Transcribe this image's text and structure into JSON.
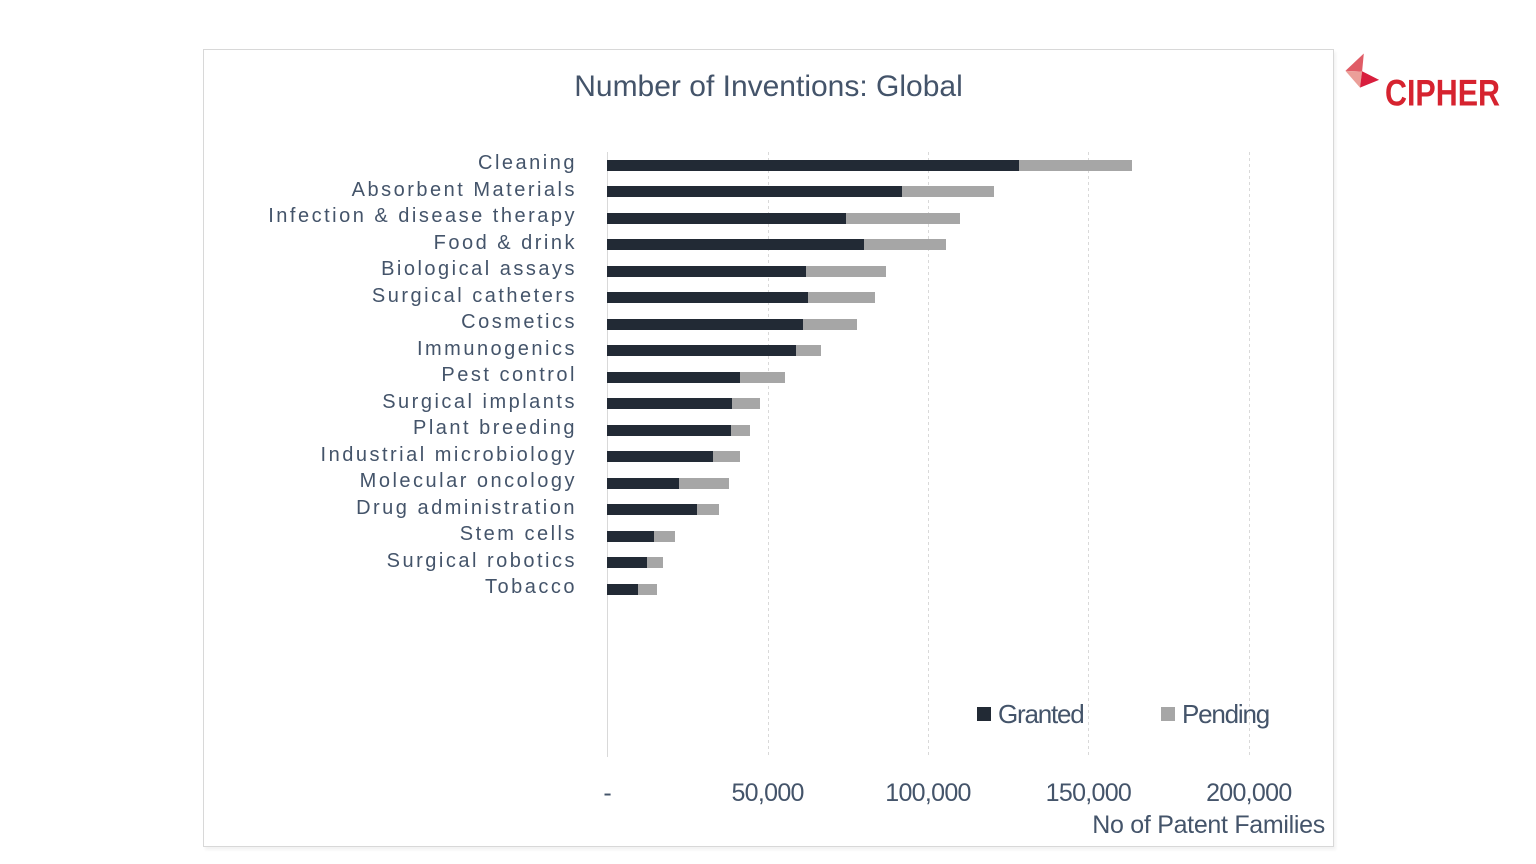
{
  "logo": {
    "brand": "CIPHER",
    "mark_colors": {
      "top_triangle": "#e05c66",
      "left_triangle": "#eb9f99",
      "right_triangle": "#d81e3d"
    },
    "text_color": "#d6232f"
  },
  "chart_data": {
    "type": "bar",
    "orientation": "horizontal",
    "stacked": true,
    "title": "Number of Inventions: Global",
    "xlabel": "No of Patent Families",
    "ylabel": "",
    "xlim": [
      0,
      200000
    ],
    "grid": "vertical-dashed",
    "legend_position": "inside-bottom-right",
    "categories": [
      "Cleaning",
      "Absorbent Materials",
      "Infection & disease therapy",
      "Food & drink",
      "Biological assays",
      "Surgical catheters",
      "Cosmetics",
      "Immunogenics",
      "Pest control",
      "Surgical implants",
      "Plant breeding",
      "Industrial microbiology",
      "Molecular oncology",
      "Drug administration",
      "Stem cells",
      "Surgical robotics",
      "Tobacco"
    ],
    "series": [
      {
        "name": "Granted",
        "color": "#222a35",
        "values": [
          128500,
          92000,
          74500,
          80000,
          62000,
          62500,
          61000,
          59000,
          41500,
          39000,
          38500,
          33000,
          22500,
          28000,
          14500,
          12500,
          9500
        ]
      },
      {
        "name": "Pending",
        "color": "#a6a6a6",
        "values": [
          35000,
          28500,
          35500,
          25500,
          25000,
          21000,
          17000,
          7500,
          14000,
          8500,
          6000,
          8500,
          15500,
          7000,
          6500,
          5000,
          6000
        ]
      }
    ],
    "x_ticks": [
      {
        "value": 0,
        "label": "-"
      },
      {
        "value": 50000,
        "label": "50,000"
      },
      {
        "value": 100000,
        "label": "100,000"
      },
      {
        "value": 150000,
        "label": "150,000"
      },
      {
        "value": 200000,
        "label": "200,000"
      }
    ]
  },
  "colors": {
    "text": "#44546a",
    "grid": "#d9d9d9",
    "panel_border": "#d8d8d8",
    "background": "#ffffff"
  }
}
